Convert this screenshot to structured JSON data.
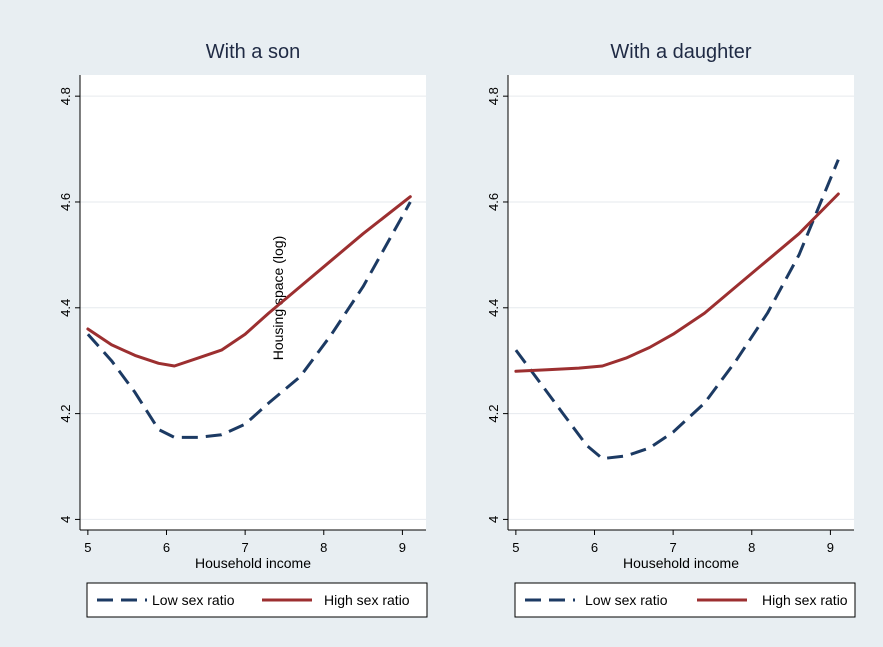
{
  "colors": {
    "background": "#e8eef2",
    "plot_background": "#ffffff",
    "grid": "#e6eaee",
    "low_series": "#1c3a63",
    "high_series": "#9c2f30"
  },
  "chart_data": [
    {
      "type": "line",
      "title": "With a son",
      "xlabel": "Household income",
      "ylabel": "Housing space (log)",
      "x_ticks": [
        5,
        6,
        7,
        8,
        9
      ],
      "y_ticks": [
        4,
        4.2,
        4.4,
        4.6,
        4.8
      ],
      "xlim": [
        4.9,
        9.3
      ],
      "ylim": [
        3.98,
        4.84
      ],
      "grid": true,
      "legend_position": "bottom",
      "series": [
        {
          "name": "Low sex ratio",
          "style": "dashed",
          "color": "#1c3a63",
          "x": [
            5,
            5.3,
            5.6,
            5.9,
            6.1,
            6.4,
            6.7,
            7.0,
            7.3,
            7.7,
            8.1,
            8.5,
            9.1
          ],
          "y": [
            4.35,
            4.3,
            4.24,
            4.17,
            4.155,
            4.155,
            4.16,
            4.18,
            4.22,
            4.27,
            4.35,
            4.44,
            4.6
          ]
        },
        {
          "name": "High sex ratio",
          "style": "solid",
          "color": "#9c2f30",
          "x": [
            5,
            5.3,
            5.6,
            5.9,
            6.1,
            6.4,
            6.7,
            7.0,
            7.3,
            7.7,
            8.1,
            8.5,
            9.1
          ],
          "y": [
            4.36,
            4.33,
            4.31,
            4.295,
            4.29,
            4.305,
            4.32,
            4.35,
            4.39,
            4.44,
            4.49,
            4.54,
            4.61
          ]
        }
      ]
    },
    {
      "type": "line",
      "title": "With a daughter",
      "xlabel": "Household income",
      "ylabel": "",
      "x_ticks": [
        5,
        6,
        7,
        8,
        9
      ],
      "y_ticks": [
        4,
        4.2,
        4.4,
        4.6,
        4.8
      ],
      "xlim": [
        4.9,
        9.3
      ],
      "ylim": [
        3.98,
        4.84
      ],
      "grid": true,
      "legend_position": "bottom",
      "series": [
        {
          "name": "Low sex ratio",
          "style": "dashed",
          "color": "#1c3a63",
          "x": [
            5,
            5.3,
            5.6,
            5.9,
            6.1,
            6.4,
            6.7,
            7.0,
            7.4,
            7.8,
            8.2,
            8.6,
            9.1
          ],
          "y": [
            4.32,
            4.26,
            4.2,
            4.14,
            4.115,
            4.12,
            4.135,
            4.165,
            4.22,
            4.3,
            4.39,
            4.5,
            4.68
          ]
        },
        {
          "name": "High sex ratio",
          "style": "solid",
          "color": "#9c2f30",
          "x": [
            5,
            5.4,
            5.8,
            6.1,
            6.4,
            6.7,
            7.0,
            7.4,
            7.8,
            8.2,
            8.6,
            9.1
          ],
          "y": [
            4.28,
            4.283,
            4.286,
            4.29,
            4.305,
            4.325,
            4.35,
            4.39,
            4.44,
            4.49,
            4.54,
            4.615
          ]
        }
      ]
    }
  ]
}
